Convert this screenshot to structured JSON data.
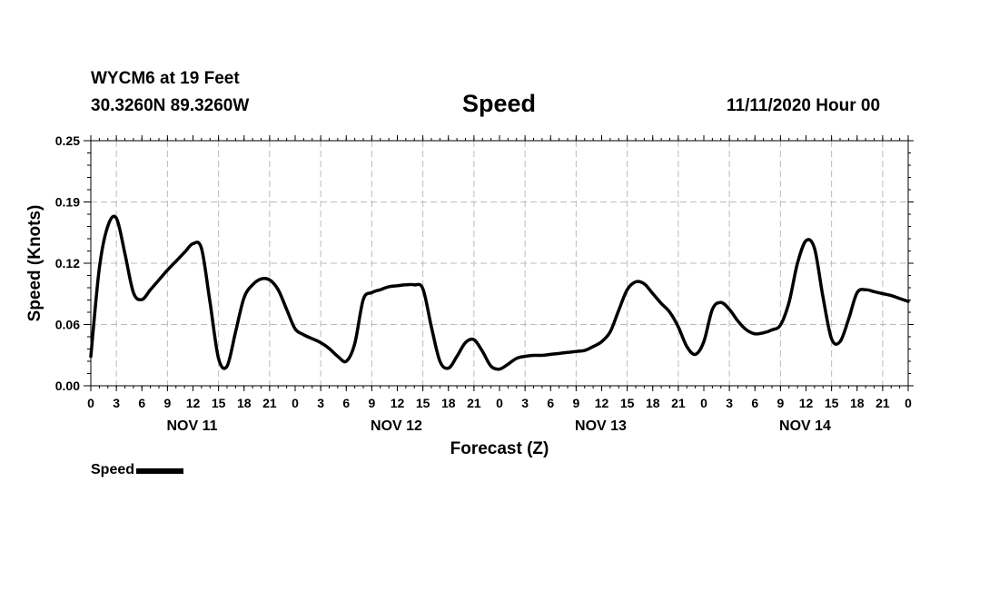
{
  "header": {
    "station": "WYCM6 at 19 Feet",
    "latlon": "30.3260N 89.3260W",
    "title": "Speed",
    "datetime": "11/11/2020 Hour 00"
  },
  "legend": {
    "label": "Speed"
  },
  "chart_data": {
    "type": "line",
    "title": "Speed",
    "xlabel": "Forecast (Z)",
    "ylabel": "Speed (Knots)",
    "x_unit": "hours from 11/11/2020 00Z",
    "xlim": [
      0,
      96
    ],
    "ylim": [
      0,
      0.25
    ],
    "y_ticks": [
      "0.00",
      "0.06",
      "0.12",
      "0.19",
      "0.25"
    ],
    "x_tick_labels": [
      "0",
      "3",
      "6",
      "9",
      "12",
      "15",
      "18",
      "21",
      "0",
      "3",
      "6",
      "9",
      "12",
      "15",
      "18",
      "21",
      "0",
      "3",
      "6",
      "9",
      "12",
      "15",
      "18",
      "21",
      "0",
      "3",
      "6",
      "9",
      "12",
      "15",
      "18",
      "21",
      "0"
    ],
    "day_labels": [
      "NOV 11",
      "NOV 12",
      "NOV 13",
      "NOV 14"
    ],
    "grid": true,
    "legend_position": "bottom-left",
    "series": [
      {
        "name": "Speed",
        "color": "#000000",
        "x": [
          0,
          1,
          2,
          3,
          4,
          5,
          6,
          7,
          8,
          9,
          10,
          11,
          12,
          13,
          14,
          15,
          16,
          17,
          18,
          19,
          20,
          21,
          22,
          23,
          24,
          25,
          26,
          27,
          28,
          29,
          30,
          31,
          32,
          33,
          34,
          35,
          36,
          37,
          38,
          39,
          40,
          41,
          42,
          43,
          44,
          45,
          46,
          47,
          48,
          49,
          50,
          51,
          52,
          53,
          54,
          55,
          56,
          57,
          58,
          59,
          60,
          61,
          62,
          63,
          64,
          65,
          66,
          67,
          68,
          69,
          70,
          71,
          72,
          73,
          74,
          75,
          76,
          77,
          78,
          79,
          80,
          81,
          82,
          83,
          84,
          85,
          86,
          87,
          88,
          89,
          90,
          91,
          92,
          93,
          94,
          95,
          96
        ],
        "y": [
          0.03,
          0.12,
          0.163,
          0.171,
          0.135,
          0.095,
          0.088,
          0.098,
          0.108,
          0.118,
          0.127,
          0.136,
          0.145,
          0.14,
          0.085,
          0.028,
          0.02,
          0.055,
          0.09,
          0.103,
          0.109,
          0.108,
          0.098,
          0.078,
          0.058,
          0.052,
          0.048,
          0.044,
          0.038,
          0.03,
          0.025,
          0.043,
          0.088,
          0.095,
          0.098,
          0.101,
          0.102,
          0.103,
          0.103,
          0.099,
          0.06,
          0.025,
          0.018,
          0.03,
          0.044,
          0.047,
          0.035,
          0.02,
          0.017,
          0.022,
          0.028,
          0.03,
          0.031,
          0.031,
          0.032,
          0.033,
          0.034,
          0.035,
          0.036,
          0.04,
          0.045,
          0.055,
          0.077,
          0.098,
          0.106,
          0.104,
          0.094,
          0.084,
          0.075,
          0.06,
          0.04,
          0.032,
          0.045,
          0.078,
          0.085,
          0.078,
          0.066,
          0.057,
          0.053,
          0.054,
          0.057,
          0.062,
          0.085,
          0.125,
          0.148,
          0.14,
          0.09,
          0.048,
          0.045,
          0.068,
          0.095,
          0.098,
          0.096,
          0.094,
          0.092,
          0.089,
          0.086
        ]
      }
    ]
  }
}
